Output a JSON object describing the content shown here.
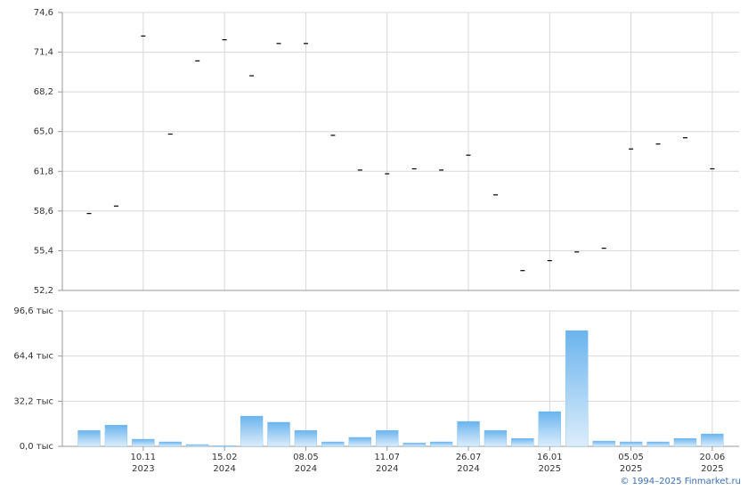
{
  "chart_data": [
    {
      "type": "scatter",
      "color": "#000000",
      "values": [
        58.4,
        59.0,
        72.7,
        64.8,
        70.7,
        72.4,
        69.5,
        72.1,
        72.1,
        64.7,
        61.9,
        61.6,
        62.0,
        61.9,
        63.1,
        59.9,
        53.8,
        54.6,
        55.3,
        55.6,
        63.6,
        64.0,
        64.5,
        62.0
      ],
      "ylim": [
        52.2,
        74.6
      ],
      "yticks": [
        {
          "value": 52.2,
          "label": "52,2"
        },
        {
          "value": 55.4,
          "label": "55,4"
        },
        {
          "value": 58.6,
          "label": "58,6"
        },
        {
          "value": 61.8,
          "label": "61,8"
        },
        {
          "value": 65.0,
          "label": "65,0"
        },
        {
          "value": 68.2,
          "label": "68,2"
        },
        {
          "value": 71.4,
          "label": "71,4"
        },
        {
          "value": 74.6,
          "label": "74,6"
        }
      ],
      "grid": true
    },
    {
      "type": "bar",
      "color": "#6ab4ee",
      "categories": [
        null,
        null,
        "10.11\n2023",
        null,
        null,
        "15.02\n2024",
        null,
        null,
        "08.05\n2024",
        null,
        null,
        "11.07\n2024",
        null,
        null,
        "26.07\n2024",
        null,
        null,
        "16.01\n2025",
        null,
        null,
        "05.05\n2025",
        null,
        null,
        "20.06\n2025"
      ],
      "values": [
        11.4,
        15.2,
        5.1,
        3.2,
        1.3,
        0.6,
        21.6,
        17.2,
        11.4,
        3.2,
        6.4,
        11.4,
        2.5,
        3.2,
        17.8,
        11.4,
        5.7,
        24.8,
        82.6,
        3.8,
        3.2,
        3.2,
        5.7,
        8.9
      ],
      "ylim": [
        0,
        96.6
      ],
      "yticks": [
        {
          "value": 0,
          "label": "0,0 тыс"
        },
        {
          "value": 32.2,
          "label": "32,2 тыс"
        },
        {
          "value": 64.4,
          "label": "64,4 тыс"
        },
        {
          "value": 96.6,
          "label": "96,6 тыс"
        }
      ],
      "grid": true
    }
  ],
  "copyright": "© 1994–2025 Finmarket.ru"
}
